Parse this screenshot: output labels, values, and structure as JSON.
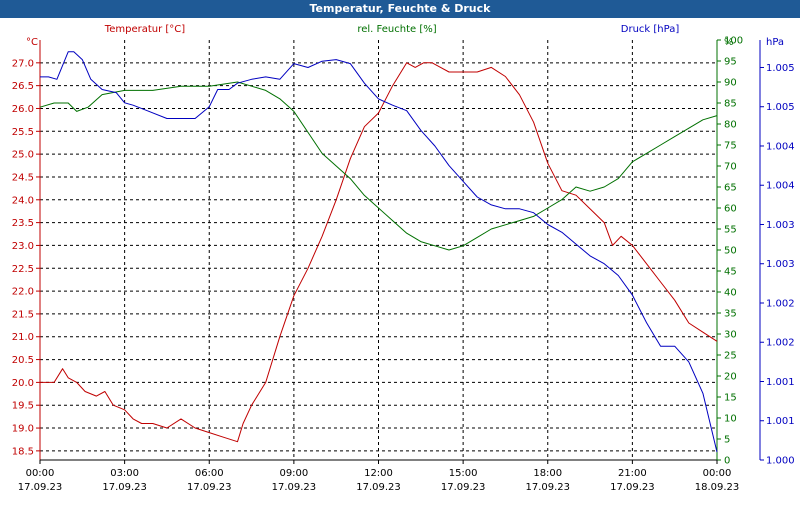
{
  "window": {
    "title": "Temperatur, Feuchte & Druck"
  },
  "colors": {
    "temperature": "#c00000",
    "humidity": "#007000",
    "pressure": "#0000c0",
    "titlebar": "#1f5a96",
    "grid": "#000000"
  },
  "chart_data": {
    "type": "line",
    "title": "Temperatur, Feuchte & Druck",
    "grid": true,
    "legend_placement": "top",
    "x_ticks": [
      {
        "time": "00:00",
        "date": "17.09.23"
      },
      {
        "time": "03:00",
        "date": "17.09.23"
      },
      {
        "time": "06:00",
        "date": "17.09.23"
      },
      {
        "time": "09:00",
        "date": "17.09.23"
      },
      {
        "time": "12:00",
        "date": "17.09.23"
      },
      {
        "time": "15:00",
        "date": "17.09.23"
      },
      {
        "time": "18:00",
        "date": "17.09.23"
      },
      {
        "time": "21:00",
        "date": "17.09.23"
      },
      {
        "time": "00:00",
        "date": "18.09.23"
      }
    ],
    "xlim_hours": [
      0,
      24
    ],
    "axes": {
      "left": {
        "label": "Temperatur [°C]",
        "unit": "°C",
        "min": 18.3,
        "max": 27.5,
        "ticks": [
          18.5,
          19.0,
          19.5,
          20.0,
          20.5,
          21.0,
          21.5,
          22.0,
          22.5,
          23.0,
          23.5,
          24.0,
          24.5,
          25.0,
          25.5,
          26.0,
          26.5,
          27.0
        ]
      },
      "right1": {
        "label": "rel. Feuchte [%]",
        "unit": "%",
        "min": 0,
        "max": 100,
        "ticks": [
          0,
          5,
          10,
          15,
          20,
          25,
          30,
          35,
          40,
          45,
          50,
          55,
          60,
          65,
          70,
          75,
          80,
          85,
          90,
          95,
          100
        ]
      },
      "right2": {
        "label": "Druck [hPa]",
        "unit": "hPa",
        "min": 1000.0,
        "max": 1005.35,
        "ticks": [
          {
            "v": 1000.0,
            "label": "1.000"
          },
          {
            "v": 1000.5,
            "label": "1.001"
          },
          {
            "v": 1001.0,
            "label": "1.001"
          },
          {
            "v": 1001.5,
            "label": "1.002"
          },
          {
            "v": 1002.0,
            "label": "1.002"
          },
          {
            "v": 1002.5,
            "label": "1.003"
          },
          {
            "v": 1003.0,
            "label": "1.003"
          },
          {
            "v": 1003.5,
            "label": "1.004"
          },
          {
            "v": 1004.0,
            "label": "1.004"
          },
          {
            "v": 1004.5,
            "label": "1.005"
          },
          {
            "v": 1005.0,
            "label": "1.005"
          }
        ]
      }
    },
    "series": [
      {
        "name": "Temperatur [°C]",
        "axis": "left",
        "color": "#c00000",
        "x": [
          0,
          0.5,
          0.8,
          1.0,
          1.3,
          1.6,
          2.0,
          2.3,
          2.6,
          3.0,
          3.3,
          3.6,
          4.0,
          4.5,
          5.0,
          5.5,
          6.0,
          6.5,
          7.0,
          7.2,
          7.5,
          8.0,
          8.5,
          9.0,
          9.5,
          10.0,
          10.5,
          11.0,
          11.5,
          12.0,
          12.5,
          13.0,
          13.3,
          13.6,
          13.9,
          14.2,
          14.5,
          15.0,
          15.5,
          16.0,
          16.5,
          17.0,
          17.5,
          18.0,
          18.5,
          19.0,
          19.5,
          20.0,
          20.3,
          20.6,
          21.0,
          21.5,
          22.0,
          22.5,
          23.0,
          23.5,
          24.0
        ],
        "values": [
          20.0,
          20.0,
          20.3,
          20.1,
          20.0,
          19.8,
          19.7,
          19.8,
          19.5,
          19.4,
          19.2,
          19.1,
          19.1,
          19.0,
          19.2,
          19.0,
          18.9,
          18.8,
          18.7,
          19.1,
          19.5,
          20.0,
          21.0,
          21.9,
          22.5,
          23.2,
          24.0,
          24.9,
          25.6,
          25.9,
          26.5,
          27.0,
          26.9,
          27.0,
          27.0,
          26.9,
          26.8,
          26.8,
          26.8,
          26.9,
          26.7,
          26.3,
          25.7,
          24.8,
          24.2,
          24.1,
          23.8,
          23.5,
          23.0,
          23.2,
          23.0,
          22.6,
          22.2,
          21.8,
          21.3,
          21.1,
          20.9
        ]
      },
      {
        "name": "rel. Feuchte [%]",
        "axis": "right1",
        "color": "#007000",
        "x": [
          0,
          0.5,
          1.0,
          1.3,
          1.7,
          2.2,
          3.0,
          4.0,
          5.0,
          6.0,
          7.0,
          7.5,
          8.0,
          8.5,
          9.0,
          9.5,
          10.0,
          10.5,
          11.0,
          11.5,
          12.0,
          12.5,
          13.0,
          13.5,
          14.0,
          14.5,
          15.0,
          15.5,
          16.0,
          16.5,
          17.0,
          17.5,
          18.0,
          18.5,
          19.0,
          19.5,
          20.0,
          20.5,
          21.0,
          21.5,
          22.0,
          22.5,
          23.0,
          23.5,
          24.0
        ],
        "values": [
          84,
          85,
          85,
          83,
          84,
          87,
          88,
          88,
          89,
          89,
          90,
          89,
          88,
          86,
          83,
          78,
          73,
          70,
          67,
          63,
          60,
          57,
          54,
          52,
          51,
          50,
          51,
          53,
          55,
          56,
          57,
          58,
          60,
          62,
          65,
          64,
          65,
          67,
          71,
          73,
          75,
          77,
          79,
          81,
          82
        ]
      },
      {
        "name": "Druck [hPa]",
        "axis": "right2",
        "color": "#0000c0",
        "x": [
          0,
          0.3,
          0.6,
          1.0,
          1.2,
          1.5,
          1.8,
          2.2,
          2.7,
          3.0,
          3.3,
          3.8,
          4.5,
          5.0,
          5.5,
          6.0,
          6.3,
          6.7,
          7.0,
          7.5,
          8.0,
          8.5,
          9.0,
          9.5,
          10.0,
          10.5,
          11.0,
          11.5,
          12.0,
          12.5,
          13.0,
          13.5,
          14.0,
          14.5,
          15.0,
          15.5,
          16.0,
          16.5,
          17.0,
          17.5,
          18.0,
          18.5,
          19.0,
          19.5,
          20.0,
          20.5,
          21.0,
          21.5,
          22.0,
          22.5,
          23.0,
          23.5,
          24.0
        ],
        "values": [
          1004.88,
          1004.88,
          1004.85,
          1005.2,
          1005.2,
          1005.1,
          1004.85,
          1004.72,
          1004.68,
          1004.55,
          1004.52,
          1004.45,
          1004.35,
          1004.35,
          1004.35,
          1004.5,
          1004.72,
          1004.72,
          1004.8,
          1004.85,
          1004.88,
          1004.85,
          1005.05,
          1005.0,
          1005.08,
          1005.1,
          1005.05,
          1004.8,
          1004.6,
          1004.52,
          1004.45,
          1004.2,
          1004.0,
          1003.75,
          1003.55,
          1003.35,
          1003.25,
          1003.2,
          1003.2,
          1003.15,
          1003.0,
          1002.9,
          1002.75,
          1002.6,
          1002.5,
          1002.35,
          1002.1,
          1001.75,
          1001.45,
          1001.45,
          1001.25,
          1000.85,
          1000.1
        ]
      }
    ]
  }
}
